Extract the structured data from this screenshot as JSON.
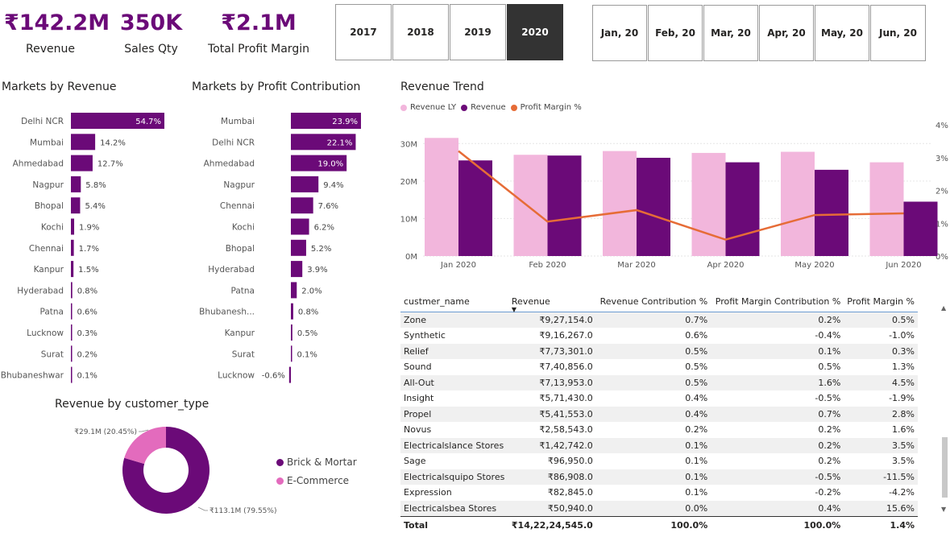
{
  "kpis": [
    {
      "value": "₹142.2M",
      "label": "Revenue"
    },
    {
      "value": "350K",
      "label": "Sales Qty"
    },
    {
      "value": "₹2.1M",
      "label": "Total Profit Margin"
    }
  ],
  "year_slicer": {
    "options": [
      "2017",
      "2018",
      "2019",
      "2020"
    ],
    "selected": "2020"
  },
  "month_slicer": {
    "options": [
      "Jan, 20",
      "Feb, 20",
      "Mar, 20",
      "Apr, 20",
      "May, 20",
      "Jun, 20"
    ]
  },
  "colors": {
    "primary": "#6b0a78",
    "light": "#f2b6dc",
    "line": "#e66c37",
    "ecommerce": "#e36bbd"
  },
  "chart_data": [
    {
      "type": "bar",
      "orientation": "horizontal",
      "title": "Markets by Revenue",
      "categories": [
        "Delhi NCR",
        "Mumbai",
        "Ahmedabad",
        "Nagpur",
        "Bhopal",
        "Kochi",
        "Chennai",
        "Kanpur",
        "Hyderabad",
        "Patna",
        "Lucknow",
        "Surat",
        "Bhubaneshwar"
      ],
      "values": [
        54.7,
        14.2,
        12.7,
        5.8,
        5.4,
        1.9,
        1.7,
        1.5,
        0.8,
        0.6,
        0.3,
        0.2,
        0.1
      ],
      "labels": [
        "54.7%",
        "14.2%",
        "12.7%",
        "5.8%",
        "5.4%",
        "1.9%",
        "1.7%",
        "1.5%",
        "0.8%",
        "0.6%",
        "0.3%",
        "0.2%",
        "0.1%"
      ]
    },
    {
      "type": "bar",
      "orientation": "horizontal",
      "title": "Markets by Profit Contribution",
      "categories": [
        "Mumbai",
        "Delhi NCR",
        "Ahmedabad",
        "Nagpur",
        "Chennai",
        "Kochi",
        "Bhopal",
        "Hyderabad",
        "Patna",
        "Bhubanesh...",
        "Kanpur",
        "Surat",
        "Lucknow"
      ],
      "values": [
        23.9,
        22.1,
        19.0,
        9.4,
        7.6,
        6.2,
        5.2,
        3.9,
        2.0,
        0.8,
        0.5,
        0.1,
        -0.6
      ],
      "labels": [
        "23.9%",
        "22.1%",
        "19.0%",
        "9.4%",
        "7.6%",
        "6.2%",
        "5.2%",
        "3.9%",
        "2.0%",
        "0.8%",
        "0.5%",
        "0.1%",
        "-0.6%"
      ]
    },
    {
      "type": "bar",
      "subtype": "clustered column + line (dual axis)",
      "title": "Revenue Trend",
      "categories": [
        "Jan 2020",
        "Feb 2020",
        "Mar 2020",
        "Apr 2020",
        "May 2020",
        "Jun 2020"
      ],
      "series": [
        {
          "name": "Revenue LY",
          "values": [
            31.5,
            27.0,
            28.0,
            27.5,
            27.8,
            25.0
          ]
        },
        {
          "name": "Revenue",
          "values": [
            25.5,
            26.8,
            26.2,
            25.0,
            23.0,
            14.5
          ]
        },
        {
          "name": "Profit Margin %",
          "values": [
            3.2,
            1.05,
            1.4,
            0.5,
            1.25,
            1.3
          ],
          "axis": "right"
        }
      ],
      "y_ticks": [
        "0M",
        "10M",
        "20M",
        "30M"
      ],
      "ylim": [
        0,
        35
      ],
      "y2_ticks": [
        "0%",
        "1%",
        "2%",
        "3%",
        "4%"
      ],
      "y2lim": [
        0,
        4
      ],
      "legend": "top-left"
    },
    {
      "type": "pie",
      "subtype": "donut",
      "title": "Revenue by customer_type",
      "categories": [
        "Brick & Mortar",
        "E-Commerce"
      ],
      "values": [
        79.55,
        20.45
      ],
      "labels": [
        "₹113.1M (79.55%)",
        "₹29.1M (20.45%)"
      ],
      "legend": "right"
    },
    {
      "type": "table",
      "columns": [
        "custmer_name",
        "Revenue",
        "Revenue Contribution %",
        "Profit Margin Contribution %",
        "Profit Margin %"
      ],
      "rows": [
        [
          "Zone",
          "₹9,27,154.0",
          "0.7%",
          "0.2%",
          "0.5%"
        ],
        [
          "Synthetic",
          "₹9,16,267.0",
          "0.6%",
          "-0.4%",
          "-1.0%"
        ],
        [
          "Relief",
          "₹7,73,301.0",
          "0.5%",
          "0.1%",
          "0.3%"
        ],
        [
          "Sound",
          "₹7,40,856.0",
          "0.5%",
          "0.5%",
          "1.3%"
        ],
        [
          "All-Out",
          "₹7,13,953.0",
          "0.5%",
          "1.6%",
          "4.5%"
        ],
        [
          "Insight",
          "₹5,71,430.0",
          "0.4%",
          "-0.5%",
          "-1.9%"
        ],
        [
          "Propel",
          "₹5,41,553.0",
          "0.4%",
          "0.7%",
          "2.8%"
        ],
        [
          "Novus",
          "₹2,58,543.0",
          "0.2%",
          "0.2%",
          "1.6%"
        ],
        [
          "Electricalslance Stores",
          "₹1,42,742.0",
          "0.1%",
          "0.2%",
          "3.5%"
        ],
        [
          "Sage",
          "₹96,950.0",
          "0.1%",
          "0.2%",
          "3.5%"
        ],
        [
          "Electricalsquipo Stores",
          "₹86,908.0",
          "0.1%",
          "-0.5%",
          "-11.5%"
        ],
        [
          "Expression",
          "₹82,845.0",
          "0.1%",
          "-0.2%",
          "-4.2%"
        ],
        [
          "Electricalsbea Stores",
          "₹50,940.0",
          "0.0%",
          "0.4%",
          "15.6%"
        ]
      ],
      "total": [
        "Total",
        "₹14,22,24,545.0",
        "100.0%",
        "100.0%",
        "1.4%"
      ]
    }
  ]
}
